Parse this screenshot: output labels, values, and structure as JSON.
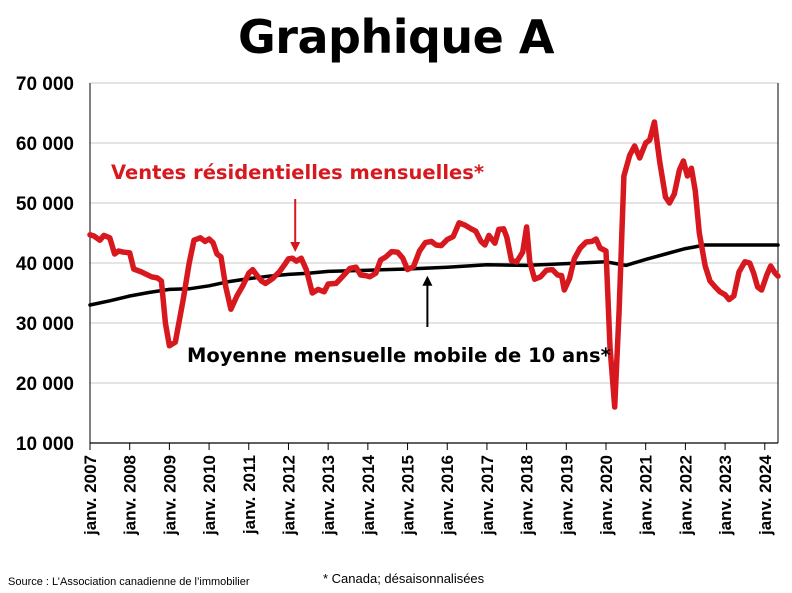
{
  "title": "Graphique A",
  "source": "Source : L’Association canadienne de l’immobilier",
  "footnote": "* Canada; désaisonnalisées",
  "colors": {
    "sales": "#d7191f",
    "average": "#000000",
    "grid": "#c8c8c8"
  },
  "chart_data": {
    "type": "line",
    "title": "Graphique A",
    "xlabel": "",
    "ylabel": "",
    "ylim": [
      10000,
      70000
    ],
    "yticks": [
      10000,
      20000,
      30000,
      40000,
      50000,
      60000,
      70000
    ],
    "ytick_labels": [
      "10 000",
      "20 000",
      "30 000",
      "40 000",
      "50 000",
      "60 000",
      "70 000"
    ],
    "xlim": [
      2007.0,
      2024.333
    ],
    "xticks": [
      2007,
      2008,
      2009,
      2010,
      2011,
      2012,
      2013,
      2014,
      2015,
      2016,
      2017,
      2018,
      2019,
      2020,
      2021,
      2022,
      2023,
      2024
    ],
    "xtick_labels": [
      "janv. 2007",
      "janv. 2008",
      "janv. 2009",
      "janv. 2010",
      "janv. 2011",
      "janv. 2012",
      "janv. 2013",
      "janv. 2014",
      "janv. 2015",
      "janv. 2016",
      "janv. 2017",
      "janv. 2018",
      "janv. 2019",
      "janv. 2020",
      "janv. 2021",
      "janv. 2022",
      "janv. 2023",
      "janv. 2024"
    ],
    "grid": "horizontal",
    "annotations": [
      {
        "text": "Ventes résidentielles mensuelles*",
        "series": "sales",
        "arrow_x": 2012.17,
        "arrow_y": 41000
      },
      {
        "text": "Moyenne mensuelle mobile de 10 ans*",
        "series": "average",
        "arrow_x": 2015.5,
        "arrow_y": 39200
      }
    ],
    "series": [
      {
        "id": "sales",
        "name": "Ventes résidentielles mensuelles*",
        "color": "#d7191f",
        "points": [
          [
            2007.0,
            44700
          ],
          [
            2007.1,
            44500
          ],
          [
            2007.25,
            43800
          ],
          [
            2007.35,
            44600
          ],
          [
            2007.5,
            44200
          ],
          [
            2007.62,
            41500
          ],
          [
            2007.72,
            42000
          ],
          [
            2007.85,
            41800
          ],
          [
            2008.0,
            41700
          ],
          [
            2008.1,
            39000
          ],
          [
            2008.3,
            38500
          ],
          [
            2008.55,
            37700
          ],
          [
            2008.7,
            37500
          ],
          [
            2008.8,
            37000
          ],
          [
            2008.9,
            30000
          ],
          [
            2009.0,
            26200
          ],
          [
            2009.15,
            26800
          ],
          [
            2009.35,
            34000
          ],
          [
            2009.5,
            40000
          ],
          [
            2009.62,
            43800
          ],
          [
            2009.78,
            44200
          ],
          [
            2009.9,
            43600
          ],
          [
            2010.0,
            44000
          ],
          [
            2010.1,
            43400
          ],
          [
            2010.2,
            41500
          ],
          [
            2010.3,
            41000
          ],
          [
            2010.42,
            36000
          ],
          [
            2010.55,
            32300
          ],
          [
            2010.7,
            34500
          ],
          [
            2010.85,
            36200
          ],
          [
            2011.0,
            38300
          ],
          [
            2011.1,
            38900
          ],
          [
            2011.2,
            38000
          ],
          [
            2011.32,
            37000
          ],
          [
            2011.42,
            36600
          ],
          [
            2011.6,
            37400
          ],
          [
            2011.78,
            38600
          ],
          [
            2011.9,
            39700
          ],
          [
            2012.0,
            40700
          ],
          [
            2012.1,
            40800
          ],
          [
            2012.2,
            40300
          ],
          [
            2012.32,
            40800
          ],
          [
            2012.45,
            38900
          ],
          [
            2012.6,
            35000
          ],
          [
            2012.75,
            35600
          ],
          [
            2012.9,
            35200
          ],
          [
            2013.0,
            36500
          ],
          [
            2013.2,
            36600
          ],
          [
            2013.4,
            38000
          ],
          [
            2013.55,
            39100
          ],
          [
            2013.7,
            39300
          ],
          [
            2013.82,
            38000
          ],
          [
            2013.95,
            37900
          ],
          [
            2014.05,
            37700
          ],
          [
            2014.2,
            38300
          ],
          [
            2014.32,
            40500
          ],
          [
            2014.45,
            41000
          ],
          [
            2014.6,
            41900
          ],
          [
            2014.75,
            41800
          ],
          [
            2014.88,
            40800
          ],
          [
            2015.0,
            38900
          ],
          [
            2015.15,
            39400
          ],
          [
            2015.3,
            42000
          ],
          [
            2015.45,
            43400
          ],
          [
            2015.6,
            43600
          ],
          [
            2015.72,
            43000
          ],
          [
            2015.85,
            42900
          ],
          [
            2016.0,
            43900
          ],
          [
            2016.15,
            44400
          ],
          [
            2016.3,
            46700
          ],
          [
            2016.45,
            46300
          ],
          [
            2016.6,
            45700
          ],
          [
            2016.72,
            45300
          ],
          [
            2016.85,
            43600
          ],
          [
            2016.95,
            43000
          ],
          [
            2017.05,
            44600
          ],
          [
            2017.2,
            43300
          ],
          [
            2017.3,
            45600
          ],
          [
            2017.42,
            45700
          ],
          [
            2017.5,
            44300
          ],
          [
            2017.62,
            40400
          ],
          [
            2017.75,
            40200
          ],
          [
            2017.9,
            41800
          ],
          [
            2018.0,
            46000
          ],
          [
            2018.08,
            40200
          ],
          [
            2018.2,
            37300
          ],
          [
            2018.35,
            37700
          ],
          [
            2018.5,
            38800
          ],
          [
            2018.65,
            38900
          ],
          [
            2018.78,
            38000
          ],
          [
            2018.88,
            37900
          ],
          [
            2018.95,
            35500
          ],
          [
            2019.08,
            37400
          ],
          [
            2019.2,
            40700
          ],
          [
            2019.35,
            42500
          ],
          [
            2019.5,
            43500
          ],
          [
            2019.65,
            43600
          ],
          [
            2019.75,
            44000
          ],
          [
            2019.85,
            42500
          ],
          [
            2020.0,
            42000
          ],
          [
            2020.1,
            26000
          ],
          [
            2020.22,
            16000
          ],
          [
            2020.33,
            32000
          ],
          [
            2020.45,
            54500
          ],
          [
            2020.6,
            58000
          ],
          [
            2020.72,
            59500
          ],
          [
            2020.85,
            57500
          ],
          [
            2021.0,
            60000
          ],
          [
            2021.1,
            60500
          ],
          [
            2021.22,
            63500
          ],
          [
            2021.35,
            57000
          ],
          [
            2021.5,
            51000
          ],
          [
            2021.6,
            50000
          ],
          [
            2021.72,
            51500
          ],
          [
            2021.85,
            55500
          ],
          [
            2021.95,
            57000
          ],
          [
            2022.05,
            54500
          ],
          [
            2022.15,
            55800
          ],
          [
            2022.25,
            52000
          ],
          [
            2022.35,
            45000
          ],
          [
            2022.5,
            39500
          ],
          [
            2022.62,
            37000
          ],
          [
            2022.75,
            36000
          ],
          [
            2022.87,
            35200
          ],
          [
            2023.0,
            34700
          ],
          [
            2023.1,
            33900
          ],
          [
            2023.22,
            34500
          ],
          [
            2023.35,
            38500
          ],
          [
            2023.5,
            40200
          ],
          [
            2023.62,
            40000
          ],
          [
            2023.72,
            38300
          ],
          [
            2023.82,
            36000
          ],
          [
            2023.92,
            35500
          ],
          [
            2024.05,
            38000
          ],
          [
            2024.15,
            39500
          ],
          [
            2024.25,
            38400
          ],
          [
            2024.333,
            37800
          ]
        ]
      },
      {
        "id": "average",
        "name": "Moyenne mensuelle mobile de 10 ans*",
        "color": "#000000",
        "points": [
          [
            2007.0,
            33000
          ],
          [
            2007.5,
            33700
          ],
          [
            2008.0,
            34500
          ],
          [
            2008.5,
            35100
          ],
          [
            2009.0,
            35600
          ],
          [
            2009.5,
            35700
          ],
          [
            2010.0,
            36200
          ],
          [
            2010.5,
            36900
          ],
          [
            2011.0,
            37400
          ],
          [
            2011.5,
            37800
          ],
          [
            2012.0,
            38100
          ],
          [
            2012.5,
            38300
          ],
          [
            2013.0,
            38600
          ],
          [
            2014.0,
            38800
          ],
          [
            2015.0,
            39000
          ],
          [
            2016.0,
            39300
          ],
          [
            2017.0,
            39700
          ],
          [
            2018.0,
            39600
          ],
          [
            2019.0,
            39900
          ],
          [
            2020.0,
            40200
          ],
          [
            2020.5,
            39600
          ],
          [
            2021.0,
            40600
          ],
          [
            2021.5,
            41500
          ],
          [
            2022.0,
            42400
          ],
          [
            2022.5,
            43000
          ],
          [
            2023.0,
            43000
          ],
          [
            2024.333,
            43000
          ]
        ]
      }
    ]
  }
}
